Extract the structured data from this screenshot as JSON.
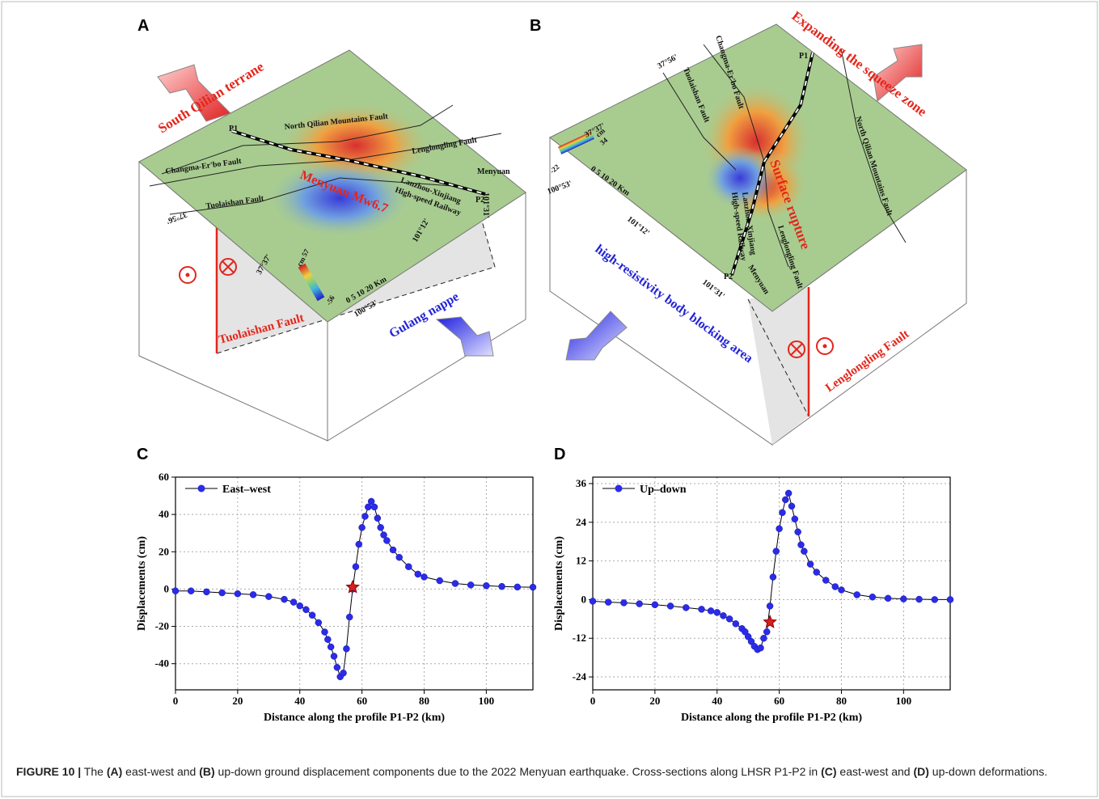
{
  "diagram_a": {
    "panel_label": "A",
    "labels": [
      "South Qilian terrane",
      "North Qilian Mountains Fault",
      "P1",
      "Lenglongling Fault",
      "Changma-Er'bo Fault",
      "Menyuan  Mw6.7",
      "Lanzhou-Xinjiang",
      "High-speed Railway",
      "Menyuan",
      "P2",
      "Tuolaishan Fault",
      "Tuolaishan Fault",
      "Gulang nappe",
      "37°56'",
      "37°37'",
      "101°12'",
      "101°31'",
      "100°53'",
      "cm",
      "57",
      "-56",
      "0  5  10    20 Km"
    ]
  },
  "diagram_b": {
    "panel_label": "B",
    "labels": [
      "Expanding the squeeze zone",
      "Changma-Er'bo Fault",
      "Tuolaishan Fault",
      "P1",
      "North Qilian Mountains Fault",
      "Surface rupture",
      "Lanzhou-Xinjiang",
      "High-speed Railway",
      "Lenglongling Fault",
      "Menyuan",
      "P2",
      "high-resistivity body blocking area",
      "Lenglongling Fault",
      "37°56'",
      "37°37'",
      "100°53'",
      "101°12'",
      "101°31'",
      "cm",
      "34",
      "-22",
      "0  5  10    20 Km"
    ]
  },
  "chart_data": [
    {
      "type": "line",
      "panel_label": "C",
      "x_label": "Distance along the profile P1-P2 (km)",
      "y_label": "Displacements (cm)",
      "grid": true,
      "legend": "upper-left",
      "line_color": "#000000",
      "x": [
        0,
        5,
        10,
        15,
        20,
        25,
        30,
        35,
        38,
        40,
        42,
        44,
        46,
        48,
        49,
        50,
        51,
        52,
        53,
        54,
        55,
        56,
        57,
        58,
        59,
        60,
        61,
        62,
        63,
        64,
        65,
        66,
        67,
        68,
        70,
        72,
        75,
        78,
        80,
        85,
        90,
        95,
        100,
        105,
        110,
        115
      ],
      "series": [
        {
          "name": "East–west",
          "color": "#2b2bea",
          "values": [
            -1,
            -1,
            -1.5,
            -2,
            -2.5,
            -3,
            -4,
            -5.5,
            -7,
            -9,
            -11,
            -14,
            -18,
            -23,
            -27,
            -31,
            -36,
            -42,
            -47,
            -45,
            -32,
            -15,
            0,
            12,
            24,
            33,
            39,
            44,
            47,
            44,
            38,
            33,
            29,
            26,
            21,
            17,
            12,
            8,
            6.5,
            4.5,
            3,
            2.2,
            1.8,
            1.4,
            1.1,
            1
          ]
        }
      ],
      "star": {
        "x": 57,
        "y": 1,
        "color": "#d62020"
      },
      "xlim": [
        0,
        115
      ],
      "xticks": [
        0,
        20,
        40,
        60,
        80,
        100
      ],
      "ylim": [
        -54,
        60
      ],
      "yticks": [
        -40,
        -20,
        0,
        20,
        40,
        60
      ]
    },
    {
      "type": "line",
      "panel_label": "D",
      "x_label": "Distance along the profile P1-P2 (km)",
      "y_label": "Displacements (cm)",
      "grid": true,
      "legend": "upper-left",
      "line_color": "#000000",
      "x": [
        0,
        5,
        10,
        15,
        20,
        25,
        30,
        35,
        38,
        40,
        42,
        44,
        46,
        48,
        49,
        50,
        51,
        52,
        53,
        54,
        55,
        56,
        57,
        58,
        59,
        60,
        61,
        62,
        63,
        64,
        65,
        66,
        67,
        68,
        70,
        72,
        75,
        78,
        80,
        85,
        90,
        95,
        100,
        105,
        110,
        115
      ],
      "series": [
        {
          "name": "Up–down",
          "color": "#2b2bea",
          "values": [
            -0.5,
            -0.8,
            -1,
            -1.3,
            -1.6,
            -2,
            -2.5,
            -3,
            -3.5,
            -4,
            -5,
            -6,
            -7.5,
            -9,
            -10,
            -11.5,
            -13,
            -14.5,
            -15.5,
            -15,
            -12,
            -10,
            -2,
            7,
            15,
            22,
            27,
            31,
            33,
            29,
            25,
            21,
            17,
            15,
            11,
            8.5,
            6,
            4,
            3,
            1.5,
            0.8,
            0.4,
            0.2,
            0.1,
            0,
            0
          ]
        }
      ],
      "star": {
        "x": 57,
        "y": -7,
        "color": "#d62020"
      },
      "xlim": [
        0,
        115
      ],
      "xticks": [
        0,
        20,
        40,
        60,
        80,
        100
      ],
      "ylim": [
        -28,
        38
      ],
      "yticks": [
        -24,
        -12,
        0,
        12,
        24,
        36
      ]
    }
  ],
  "caption": {
    "parts": [
      "FIGURE 10 |",
      " The ",
      "(A)",
      " east-west and ",
      "(B)",
      " up-down ground displacement components due to the 2022 Menyuan earthquake. Cross-sections along LHSR P1-P2 in ",
      "(C)",
      " east-west and ",
      "(D)",
      " up-down deformations."
    ]
  }
}
